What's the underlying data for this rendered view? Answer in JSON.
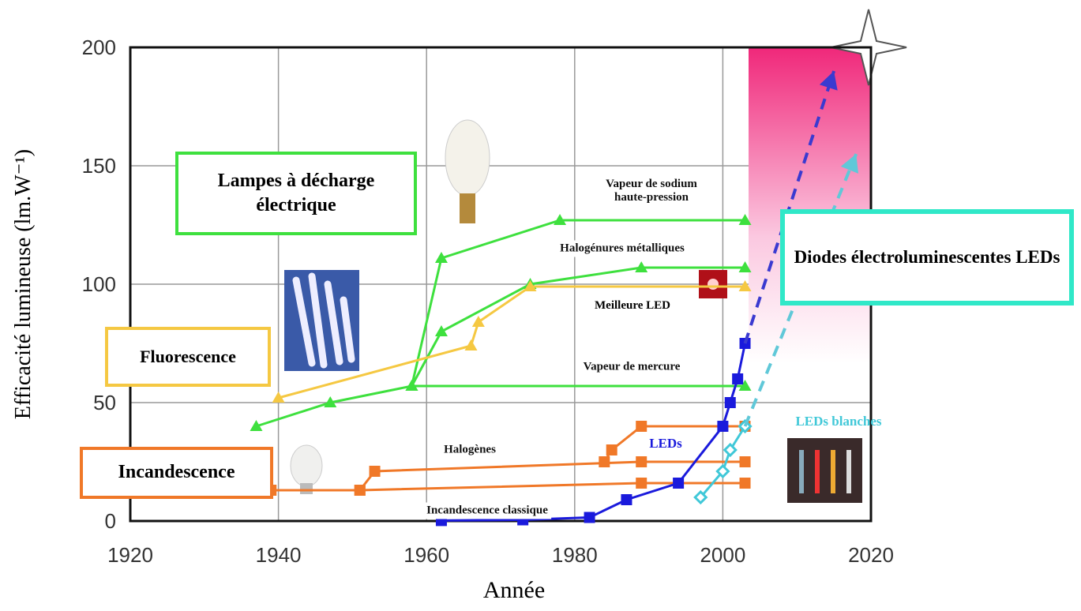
{
  "chart_data": {
    "type": "line",
    "x_label": "Année",
    "y_label": "Efficacité lumineuse (lm.W⁻¹)",
    "xlim": [
      1920,
      2020
    ],
    "ylim": [
      0,
      200
    ],
    "xticks": [
      1920,
      1940,
      1960,
      1980,
      2000,
      2020
    ],
    "yticks": [
      0,
      50,
      100,
      150,
      200
    ],
    "grid": true,
    "series": [
      {
        "name": "Incandescence classique",
        "color": "#f07828",
        "marker": "square",
        "x": [
          1939,
          1951,
          1989,
          2003
        ],
        "values": [
          13,
          13,
          16,
          16
        ]
      },
      {
        "name": "Halogènes",
        "color": "#f07828",
        "marker": "square",
        "x": [
          1951,
          1953,
          1989,
          2003
        ],
        "values": [
          13,
          21,
          25,
          25
        ]
      },
      {
        "color": "#f07828",
        "marker": "square",
        "x": [
          1984,
          1985,
          1989,
          2003
        ],
        "values": [
          25,
          30,
          40,
          40
        ]
      },
      {
        "name": "Vapeur de mercure",
        "color": "#3ee03e",
        "marker": "triangle",
        "x": [
          1937,
          1947,
          1958,
          2003
        ],
        "values": [
          40,
          50,
          57,
          57
        ]
      },
      {
        "name": "Halogénures métalliques",
        "color": "#3ee03e",
        "marker": "triangle",
        "x": [
          1958,
          1962,
          1974,
          1989,
          2003
        ],
        "values": [
          57,
          80,
          100,
          107,
          107
        ]
      },
      {
        "name": "Vapeur de sodium haute-pression",
        "color": "#3ee03e",
        "marker": "triangle",
        "x": [
          1958,
          1962,
          1978,
          2003
        ],
        "values": [
          57,
          111,
          127,
          127
        ]
      },
      {
        "color": "#f5c842",
        "marker": "triangle",
        "x": [
          1940,
          1966,
          1967,
          1974,
          2003
        ],
        "values": [
          52,
          74,
          84,
          99,
          99
        ]
      },
      {
        "name": "LEDs",
        "color": "#1a1adc",
        "marker": "square",
        "x": [
          1962,
          1973,
          1982,
          1987,
          1994,
          2000,
          2001,
          2002,
          2003
        ],
        "values": [
          0.2,
          0.5,
          1.5,
          9,
          16,
          40,
          50,
          60,
          75
        ]
      },
      {
        "name": "LEDs blanches",
        "color": "#40c8d8",
        "marker": "diamond",
        "x": [
          1997,
          2000,
          2001,
          2003
        ],
        "values": [
          10,
          21,
          30,
          40
        ]
      },
      {
        "color": "#3a3ad0",
        "dashed": true,
        "x": [
          2003,
          2015
        ],
        "values": [
          75,
          190
        ]
      },
      {
        "color": "#60c8d8",
        "dashed": true,
        "x": [
          2003,
          2018
        ],
        "values": [
          40,
          155
        ]
      }
    ],
    "annotations": [
      "Lampes à décharge électrique",
      "Fluorescence",
      "Incandescence",
      "Diodes électroluminescentes LEDs",
      "Meilleure LED"
    ]
  }
}
